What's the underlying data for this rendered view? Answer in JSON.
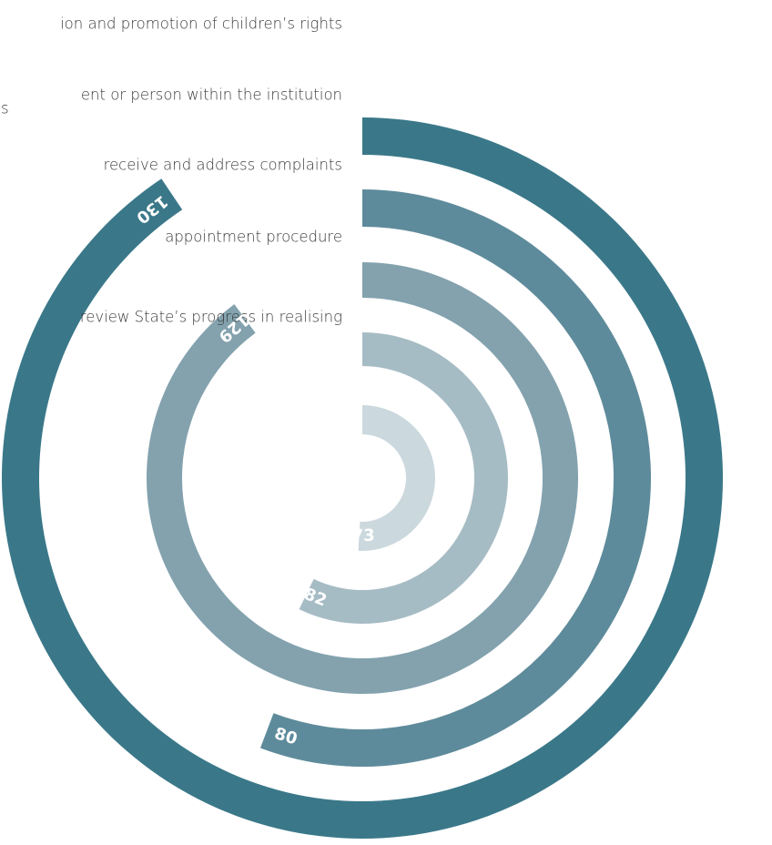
{
  "chart_data": {
    "type": "radial-bar",
    "max_value": 143.5,
    "series": [
      {
        "label": "ion and promotion of children’s rights",
        "label_extra": "",
        "value": 130,
        "color": "#3a7889"
      },
      {
        "label": "ent or person within the institution",
        "label_extra": "s",
        "value": 80,
        "color": "#5e8b9b"
      },
      {
        "label": "receive and address complaints",
        "label_extra": "",
        "value": 129,
        "color": "#83a2ae"
      },
      {
        "label": "appointment procedure",
        "label_extra": "",
        "value": 82,
        "color": "#a6bcc5"
      },
      {
        "label": "review State’s progress in realising",
        "label_extra": "",
        "value": 73,
        "color": "#cbd8dd"
      }
    ]
  }
}
